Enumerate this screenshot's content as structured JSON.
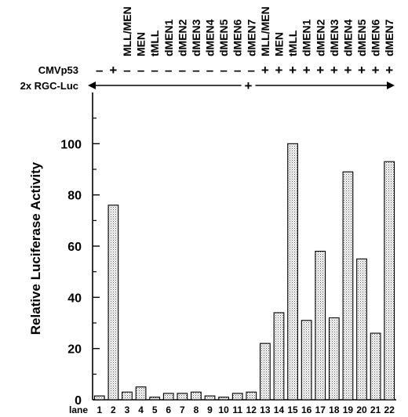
{
  "chart_data": {
    "type": "bar",
    "ylabel": "Relative Luciferase Activity",
    "ylim": [
      0,
      120
    ],
    "yticks": [
      0,
      20,
      40,
      60,
      80,
      100
    ],
    "lane_label": "lane",
    "categories": [
      "1",
      "2",
      "3",
      "4",
      "5",
      "6",
      "7",
      "8",
      "9",
      "10",
      "11",
      "12",
      "13",
      "14",
      "15",
      "16",
      "17",
      "18",
      "19",
      "20",
      "21",
      "22"
    ],
    "values": [
      1.5,
      76,
      3,
      5,
      1,
      2.5,
      2.5,
      3,
      1.5,
      1,
      2.5,
      3,
      22,
      34,
      100,
      31,
      58,
      32,
      89,
      55,
      26,
      93
    ],
    "construct_labels": [
      "",
      "",
      "MLL/MEN",
      "MEN",
      "tMLL",
      "dMEN1",
      "dMEN2",
      "dMEN3",
      "dMEN4",
      "dMEN5",
      "dMEN6",
      "dMEN7",
      "MLL/MEN",
      "MEN",
      "tMLL",
      "dMEN1",
      "dMEN2",
      "dMEN3",
      "dMEN4",
      "dMEN5",
      "dMEN6",
      "dMEN7"
    ],
    "rows": [
      {
        "label": "CMVp53",
        "signs": [
          "–",
          "+",
          "–",
          "–",
          "–",
          "–",
          "–",
          "–",
          "–",
          "–",
          "–",
          "–",
          "+",
          "+",
          "+",
          "+",
          "+",
          "+",
          "+",
          "+",
          "+",
          "+"
        ]
      },
      {
        "label": "2x RGC-Luc",
        "span_sign": "+"
      }
    ],
    "pattern_color": "#000000",
    "bar_fill": "#e4e4e4"
  }
}
